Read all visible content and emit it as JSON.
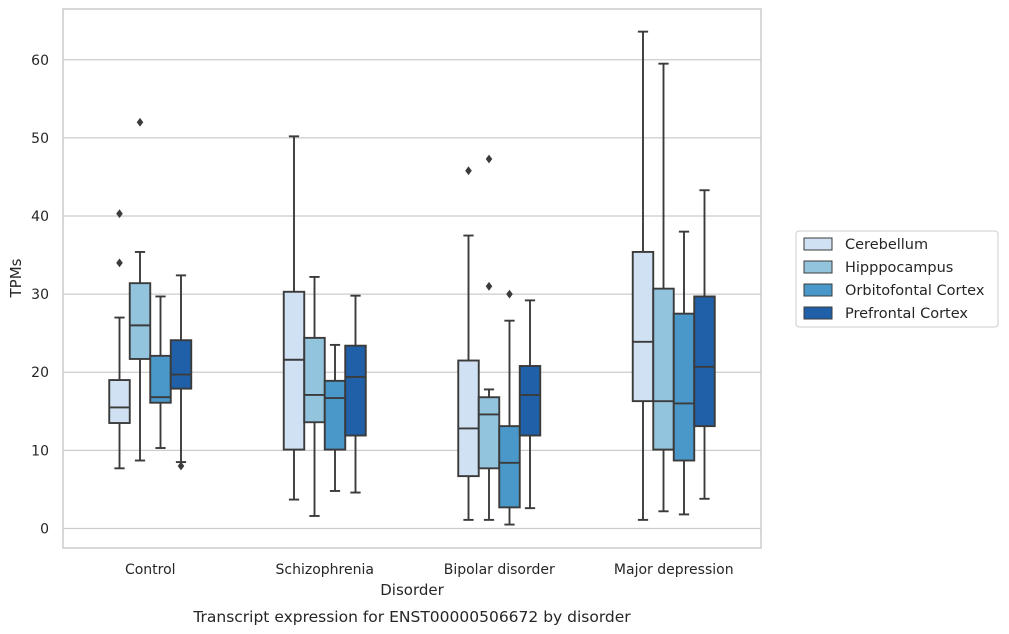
{
  "chart_data": {
    "type": "box",
    "caption": "Transcript expression for ENST00000506672 by disorder",
    "xlabel": "Disorder",
    "ylabel": "TPMs",
    "ylim": [
      -2.5,
      66.5
    ],
    "yticks": [
      0,
      10,
      20,
      30,
      40,
      50,
      60
    ],
    "grid": "horizontal",
    "legend_position": "right",
    "categories": [
      "Control",
      "Schizophrenia",
      "Bipolar disorder",
      "Major depression"
    ],
    "series": [
      {
        "name": "Cerebellum",
        "color": "#cfe1f2",
        "boxes": [
          {
            "whislo": 7.7,
            "q1": 13.5,
            "med": 15.5,
            "q3": 19.0,
            "whishi": 27.0,
            "fliers": [
              34.0,
              40.3
            ]
          },
          {
            "whislo": 3.7,
            "q1": 10.1,
            "med": 21.6,
            "q3": 30.3,
            "whishi": 50.2,
            "fliers": []
          },
          {
            "whislo": 1.1,
            "q1": 6.7,
            "med": 12.8,
            "q3": 21.5,
            "whishi": 37.5,
            "fliers": [
              45.8
            ]
          },
          {
            "whislo": 1.1,
            "q1": 16.3,
            "med": 23.9,
            "q3": 35.4,
            "whishi": 63.6,
            "fliers": []
          }
        ]
      },
      {
        "name": "Hipppocampus",
        "color": "#93c4de",
        "boxes": [
          {
            "whislo": 8.7,
            "q1": 21.7,
            "med": 26.0,
            "q3": 31.4,
            "whishi": 35.4,
            "fliers": [
              52.0
            ]
          },
          {
            "whislo": 1.6,
            "q1": 13.6,
            "med": 17.1,
            "q3": 24.4,
            "whishi": 32.2,
            "fliers": []
          },
          {
            "whislo": 1.1,
            "q1": 7.7,
            "med": 14.6,
            "q3": 16.8,
            "whishi": 17.8,
            "fliers": [
              31.0,
              47.3
            ]
          },
          {
            "whislo": 2.2,
            "q1": 10.1,
            "med": 16.3,
            "q3": 30.7,
            "whishi": 59.5,
            "fliers": []
          }
        ]
      },
      {
        "name": "Orbitofontal Cortex",
        "color": "#4a98c9",
        "boxes": [
          {
            "whislo": 10.3,
            "q1": 16.1,
            "med": 16.8,
            "q3": 22.1,
            "whishi": 29.7,
            "fliers": []
          },
          {
            "whislo": 4.8,
            "q1": 10.1,
            "med": 16.7,
            "q3": 18.9,
            "whishi": 23.5,
            "fliers": []
          },
          {
            "whislo": 0.5,
            "q1": 2.7,
            "med": 8.4,
            "q3": 13.1,
            "whishi": 26.6,
            "fliers": [
              30.0
            ]
          },
          {
            "whislo": 1.8,
            "q1": 8.7,
            "med": 16.0,
            "q3": 27.5,
            "whishi": 38.0,
            "fliers": []
          }
        ]
      },
      {
        "name": "Prefrontal Cortex",
        "color": "#2060a8",
        "boxes": [
          {
            "whislo": 8.5,
            "q1": 17.9,
            "med": 19.7,
            "q3": 24.1,
            "whishi": 32.4,
            "fliers": [
              8.0
            ]
          },
          {
            "whislo": 4.6,
            "q1": 11.9,
            "med": 19.4,
            "q3": 23.4,
            "whishi": 29.8,
            "fliers": []
          },
          {
            "whislo": 2.6,
            "q1": 11.9,
            "med": 17.1,
            "q3": 20.8,
            "whishi": 29.2,
            "fliers": []
          },
          {
            "whislo": 3.8,
            "q1": 13.1,
            "med": 20.7,
            "q3": 29.7,
            "whishi": 43.3,
            "fliers": []
          }
        ]
      }
    ]
  }
}
